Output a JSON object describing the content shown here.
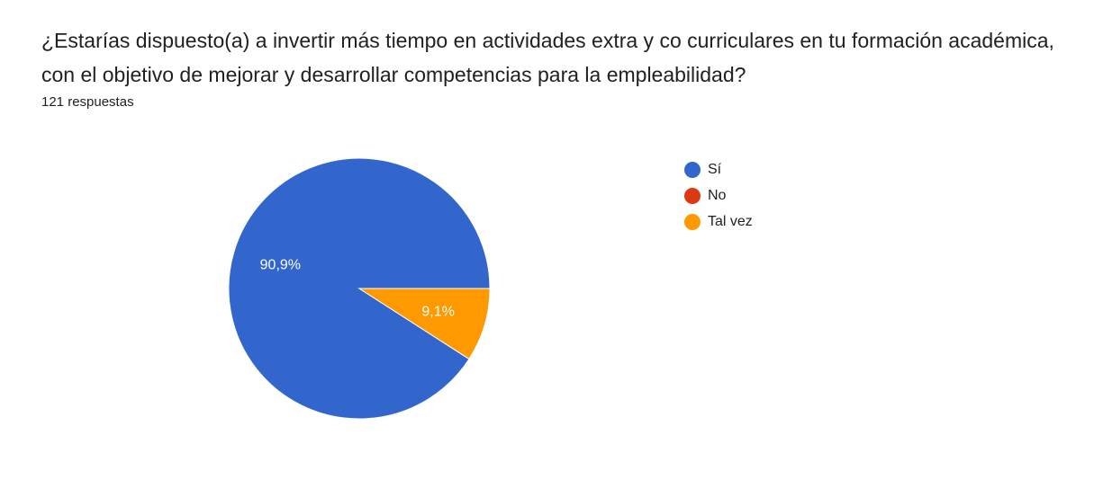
{
  "question": {
    "title": "¿Estarías dispuesto(a) a invertir más tiempo en actividades extra y co curriculares en tu formación académica, con el objetivo de mejorar y desarrollar competencias para la empleabilidad?",
    "response_count": "121 respuestas"
  },
  "chart_data": {
    "type": "pie",
    "title": "",
    "categories": [
      "Sí",
      "No",
      "Tal vez"
    ],
    "values": [
      90.9,
      0,
      9.1
    ],
    "labels": [
      "90,9%",
      "",
      "9,1%"
    ],
    "colors": [
      "#3366cc",
      "#dc3912",
      "#ff9900"
    ],
    "legend_position": "right"
  }
}
